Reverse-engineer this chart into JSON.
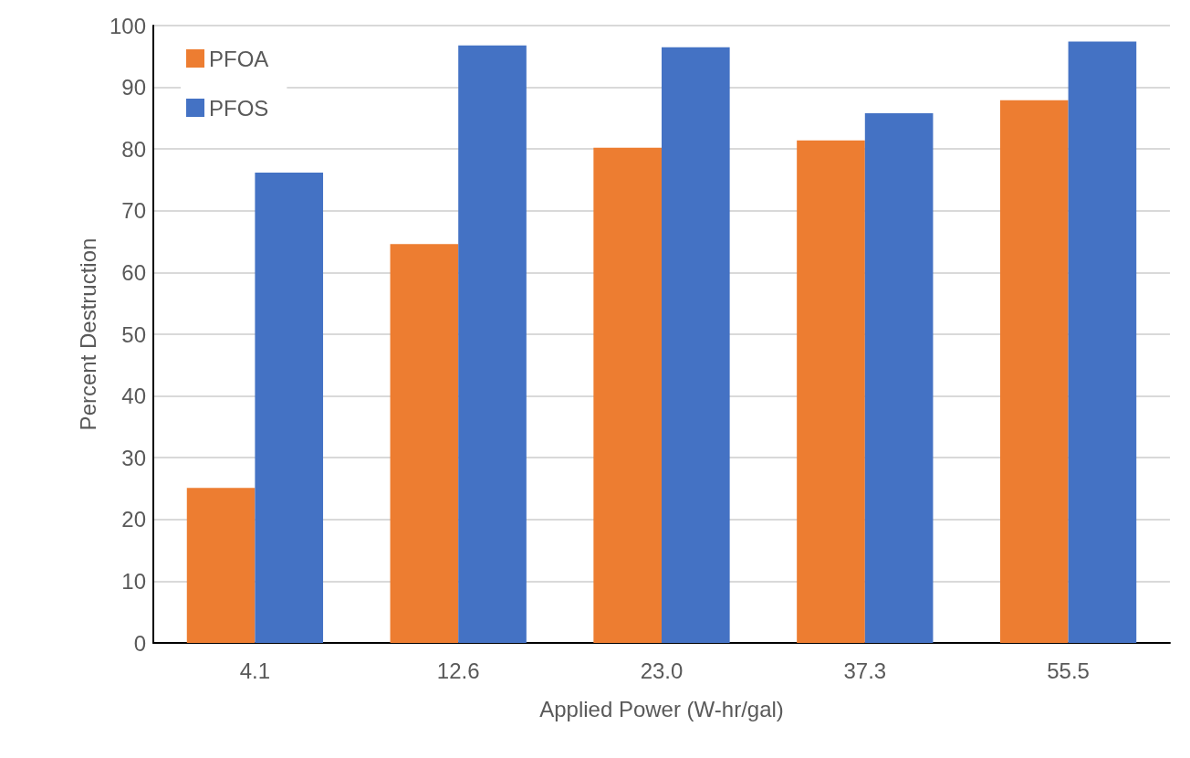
{
  "chart_data": {
    "type": "bar",
    "xlabel": "Applied Power (W-hr/gal)",
    "ylabel": "Percent Destruction",
    "categories": [
      "4.1",
      "12.6",
      "23.0",
      "37.3",
      "55.5"
    ],
    "series": [
      {
        "name": "PFOA",
        "color": "#ed7d31",
        "values": [
          25.1,
          64.6,
          80.2,
          81.4,
          87.9
        ]
      },
      {
        "name": "PFOS",
        "color": "#4472c4",
        "values": [
          76.2,
          96.8,
          96.5,
          85.8,
          97.4
        ]
      }
    ],
    "ylim": [
      0,
      100
    ],
    "yticks": [
      0,
      10,
      20,
      30,
      40,
      50,
      60,
      70,
      80,
      90,
      100
    ],
    "grid": "y",
    "legend": "top left"
  }
}
